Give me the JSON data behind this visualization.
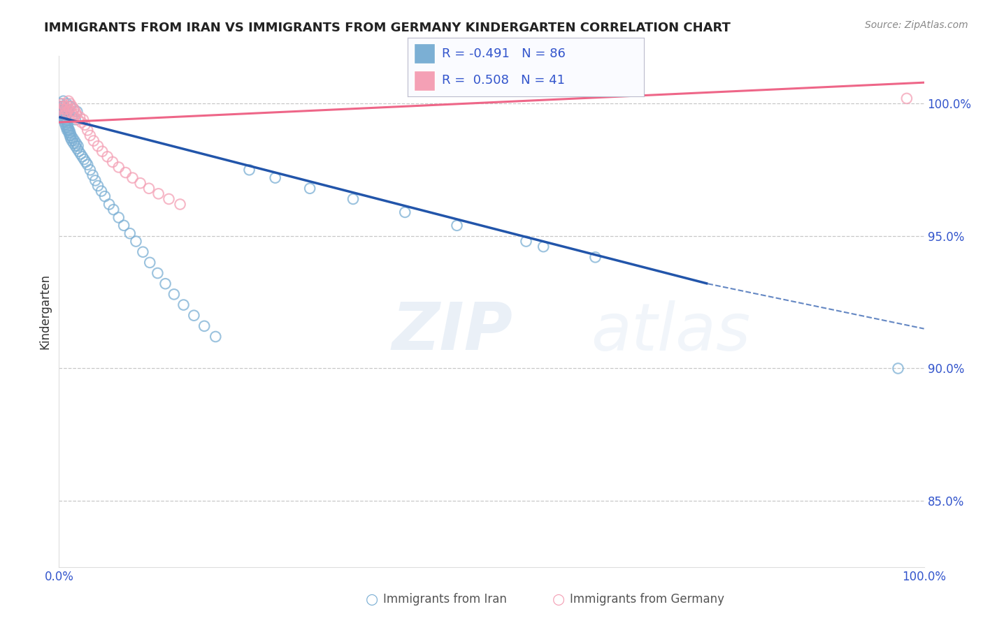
{
  "title": "IMMIGRANTS FROM IRAN VS IMMIGRANTS FROM GERMANY KINDERGARTEN CORRELATION CHART",
  "source": "Source: ZipAtlas.com",
  "ylabel": "Kindergarten",
  "iran_R": -0.491,
  "iran_N": 86,
  "germany_R": 0.508,
  "germany_N": 41,
  "iran_color": "#7BAFD4",
  "germany_color": "#F4A0B5",
  "iran_line_color": "#2255AA",
  "germany_line_color": "#EE6688",
  "xlim": [
    0,
    100
  ],
  "ylim": [
    82.5,
    101.8
  ],
  "yticks": [
    85.0,
    90.0,
    95.0,
    100.0
  ],
  "ytick_labels": [
    "85.0%",
    "90.0%",
    "95.0%",
    "100.0%"
  ],
  "xtick_labels": [
    "0.0%",
    "100.0%"
  ],
  "watermark": "ZIPatlas",
  "legend_label_iran": "Immigrants from Iran",
  "legend_label_germany": "Immigrants from Germany",
  "iran_line": [
    [
      0,
      99.5
    ],
    [
      75,
      93.2
    ],
    [
      100,
      91.5
    ]
  ],
  "iran_solid_end_x": 75,
  "germany_line": [
    [
      0,
      99.3
    ],
    [
      100,
      100.8
    ]
  ],
  "iran_scatter_x": [
    0.15,
    0.2,
    0.25,
    0.3,
    0.35,
    0.4,
    0.45,
    0.5,
    0.55,
    0.6,
    0.65,
    0.7,
    0.75,
    0.8,
    0.85,
    0.9,
    0.95,
    1.0,
    1.05,
    1.1,
    1.15,
    1.2,
    1.25,
    1.3,
    1.35,
    1.4,
    1.5,
    1.6,
    1.7,
    1.8,
    1.9,
    2.0,
    2.1,
    2.2,
    2.3,
    2.5,
    2.7,
    2.9,
    3.1,
    3.3,
    3.6,
    3.9,
    4.2,
    4.5,
    4.9,
    5.3,
    5.8,
    6.3,
    6.9,
    7.5,
    8.2,
    8.9,
    9.7,
    10.5,
    11.4,
    12.3,
    13.3,
    14.4,
    15.6,
    16.8,
    18.1,
    0.3,
    0.5,
    0.7,
    0.9,
    1.1,
    1.3,
    1.5,
    1.7,
    1.9,
    2.1,
    0.4,
    0.6,
    0.8,
    1.0,
    22.0,
    25.0,
    29.0,
    34.0,
    40.0,
    46.0,
    54.0,
    56.0,
    62.0,
    97.0
  ],
  "iran_scatter_y": [
    100.0,
    99.8,
    99.9,
    99.7,
    99.6,
    99.8,
    99.5,
    99.7,
    99.4,
    99.6,
    99.3,
    99.5,
    99.2,
    99.4,
    99.1,
    99.3,
    99.0,
    99.2,
    99.1,
    99.0,
    98.9,
    99.0,
    98.8,
    98.9,
    98.7,
    98.8,
    98.6,
    98.7,
    98.5,
    98.6,
    98.4,
    98.5,
    98.3,
    98.4,
    98.2,
    98.1,
    98.0,
    97.9,
    97.8,
    97.7,
    97.5,
    97.3,
    97.1,
    96.9,
    96.7,
    96.5,
    96.2,
    96.0,
    95.7,
    95.4,
    95.1,
    94.8,
    94.4,
    94.0,
    93.6,
    93.2,
    92.8,
    92.4,
    92.0,
    91.6,
    91.2,
    99.9,
    100.1,
    99.8,
    100.0,
    99.7,
    99.9,
    99.5,
    99.8,
    99.4,
    99.7,
    99.6,
    99.9,
    99.8,
    99.7,
    97.5,
    97.2,
    96.8,
    96.4,
    95.9,
    95.4,
    94.8,
    94.6,
    94.2,
    90.0
  ],
  "germany_scatter_x": [
    0.1,
    0.2,
    0.3,
    0.4,
    0.5,
    0.6,
    0.7,
    0.8,
    0.9,
    1.0,
    1.1,
    1.2,
    1.3,
    1.4,
    1.5,
    1.6,
    1.7,
    1.8,
    1.9,
    2.0,
    2.2,
    2.4,
    2.6,
    2.8,
    3.0,
    3.3,
    3.6,
    4.0,
    4.5,
    5.0,
    5.6,
    6.2,
    6.9,
    7.7,
    8.5,
    9.4,
    10.4,
    11.5,
    12.7,
    14.0,
    98.0
  ],
  "germany_scatter_y": [
    99.8,
    99.9,
    99.7,
    100.0,
    99.8,
    99.9,
    99.6,
    99.8,
    99.7,
    99.9,
    100.1,
    99.8,
    100.0,
    99.7,
    99.9,
    99.6,
    99.8,
    99.5,
    99.7,
    99.6,
    99.4,
    99.5,
    99.3,
    99.4,
    99.2,
    99.0,
    98.8,
    98.6,
    98.4,
    98.2,
    98.0,
    97.8,
    97.6,
    97.4,
    97.2,
    97.0,
    96.8,
    96.6,
    96.4,
    96.2,
    100.2
  ]
}
